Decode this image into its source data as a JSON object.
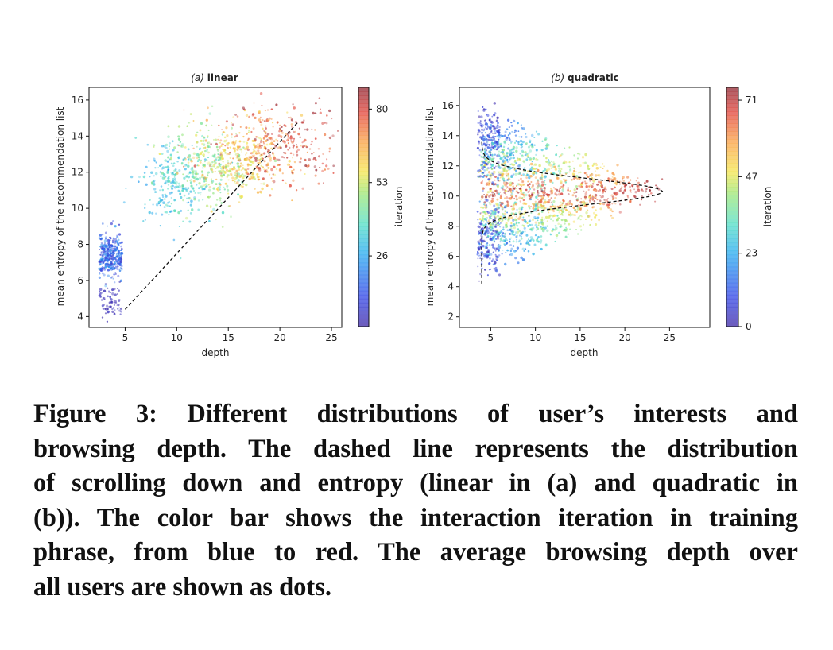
{
  "chart_data": [
    {
      "type": "scatter",
      "title_prefix": "(a)",
      "title": "linear",
      "xlabel": "depth",
      "ylabel": "mean entropy of the recommendation list",
      "colorbar_label": "iteration",
      "xlim": [
        1.5,
        26
      ],
      "ylim": [
        3.4,
        16.7
      ],
      "xticks": [
        5,
        10,
        15,
        20,
        25
      ],
      "yticks": [
        4,
        6,
        8,
        10,
        12,
        14,
        16
      ],
      "colorbar_range": [
        0,
        88
      ],
      "colorbar_ticks": [
        26,
        53,
        80
      ],
      "grid": false,
      "dashed_line": {
        "x": [
          5,
          21.8
        ],
        "y": [
          4.4,
          14.8
        ]
      }
    },
    {
      "type": "scatter",
      "title_prefix": "(b)",
      "title": "quadratic",
      "xlabel": "depth",
      "ylabel": "mean entropy of the recommendation list",
      "colorbar_label": "iteration",
      "xlim": [
        1.5,
        29.5
      ],
      "ylim": [
        1.3,
        17.2
      ],
      "xticks": [
        5,
        10,
        15,
        20,
        25
      ],
      "yticks": [
        2,
        4,
        6,
        8,
        10,
        12,
        14,
        16
      ],
      "colorbar_range": [
        0,
        75
      ],
      "colorbar_ticks": [
        0,
        23,
        47,
        71
      ],
      "grid": false,
      "dashed_curve": {
        "center_y": 10.3,
        "min_x": 4.0,
        "max_x": 24.2,
        "y_range": [
          4.2,
          13.8
        ]
      }
    }
  ],
  "caption_lines": [
    "Figure 3: Different distributions of user’s interests and",
    "browsing depth. The dashed line represents the distribution",
    "of scrolling down and entropy (linear in (a) and quadratic in",
    "(b)). The color bar shows the interaction iteration in training",
    "phrase, from blue to red. The average browsing depth over",
    "all users are shown as dots."
  ]
}
